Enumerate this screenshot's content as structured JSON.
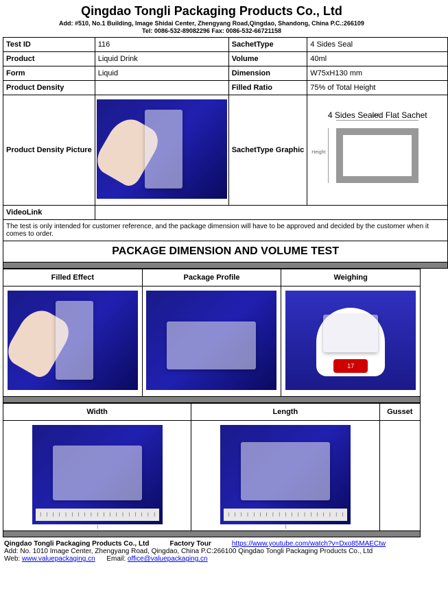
{
  "header": {
    "company": "Qingdao Tongli Packaging Products Co., Ltd",
    "address": "Add: #510, No.1 Building, Image Shidai Center, Zhengyang Road,Qingdao, Shandong, China  P.C.:266109",
    "contact": "Tel: 0086-532-89082296   Fax: 0086-532-66721158"
  },
  "spec": {
    "labels": {
      "test_id": "Test ID",
      "sachet_type": "SachetType",
      "product": "Product",
      "volume": "Volume",
      "form": "Form",
      "dimension": "Dimension",
      "density": "Product Density",
      "filled_ratio": "Filled Ratio",
      "density_picture": "Product Density Picture",
      "sachet_graphic": "SachetType Graphic",
      "video_link": "VideoLink"
    },
    "values": {
      "test_id": "116",
      "sachet_type": "4 Sides Seal",
      "product": "Liquid Drink",
      "volume": "40ml",
      "form": "Liquid",
      "dimension": "W75xH130 mm",
      "density": "",
      "filled_ratio": "75% of Total Height",
      "video_link": ""
    },
    "diagram": {
      "title": "4 Sides Sealed Flat Sachet",
      "width_label": "Width",
      "height_label": "Height"
    }
  },
  "note": "The test is only intended for customer reference, and the package dimension will have to be approved and decided by the customer when it comes to order.",
  "section_title": "PACKAGE DIMENSION AND VOLUME TEST",
  "columns_top": {
    "c1": "Filled Effect",
    "c2": "Package Profile",
    "c3": "Weighing"
  },
  "columns_bottom": {
    "c1": "Width",
    "c2": "Length",
    "c3": "Gusset"
  },
  "weighing_display": "17",
  "ruler_marks": "| | | | | | | | | | | | | | | | | | | |",
  "footer": {
    "company": "Qingdao Tongli Packaging Products Co., Ltd",
    "factory_tour_label": "Factory Tour",
    "youtube_url": "https://www.youtube.com/watch?v=Dxo85MAECtw",
    "address2": "Add: No. 1010 Image Center, Zhengyang Road, Qingdao, China  P.C:266100  Qingdao Tongli Packaging Products Co., Ltd",
    "web_label": "Web: ",
    "web_url": "www.valuepackaging.cn",
    "email_label": "Email: ",
    "email": "office@valuepackaging.cn"
  },
  "colors": {
    "border": "#000000",
    "divider": "#808080",
    "photo_bg_a": "#1a1a8a",
    "photo_bg_b": "#2020b0",
    "diagram_frame": "#999999",
    "link": "#0000ee",
    "scale_red": "#d00000"
  }
}
